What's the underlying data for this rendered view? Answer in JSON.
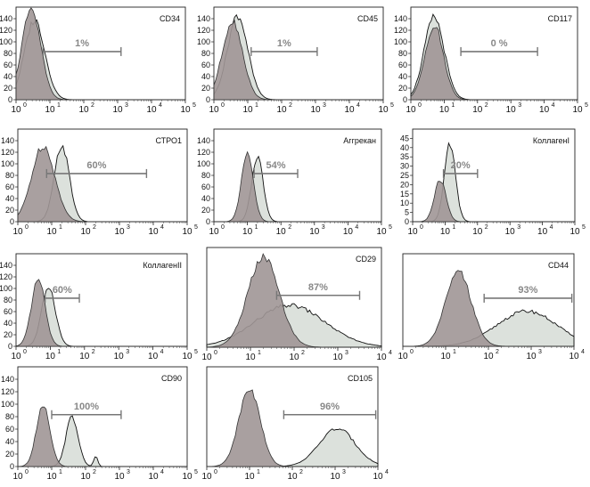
{
  "chart_data": [
    {
      "type": "area",
      "title": "CD34",
      "percent_label": "1%",
      "ylim": [
        0,
        160
      ],
      "yticks": [
        "0",
        "20",
        "40",
        "60",
        "80",
        "100",
        "120",
        "140"
      ],
      "xlim": [
        0,
        5
      ],
      "xticks": [
        "10",
        "10",
        "10",
        "10",
        "10",
        "10"
      ],
      "xtick_exponents": [
        "0",
        "1",
        "2",
        "3",
        "4",
        "5"
      ],
      "control_peak_log": 0.45,
      "sample_peak_log": 0.55,
      "gate_log": [
        0.8,
        3.1
      ],
      "control_color": "#a09696",
      "sample_color": "#d6dcd6"
    },
    {
      "type": "area",
      "title": "CD45",
      "percent_label": "1%",
      "ylim": [
        0,
        160
      ],
      "yticks": [
        "0",
        "20",
        "40",
        "60",
        "80",
        "100",
        "120",
        "140"
      ],
      "xlim": [
        0,
        5
      ],
      "xticks": [
        "10",
        "10",
        "10",
        "10",
        "10",
        "10"
      ],
      "xtick_exponents": [
        "0",
        "1",
        "2",
        "3",
        "4",
        "5"
      ],
      "control_peak_log": 0.55,
      "sample_peak_log": 0.7,
      "gate_log": [
        1.1,
        3.05
      ],
      "control_color": "#a09696",
      "sample_color": "#d6dcd6"
    },
    {
      "type": "area",
      "title": "CD117",
      "percent_label": "0 %",
      "ylim": [
        0,
        160
      ],
      "yticks": [
        "0",
        "20",
        "40",
        "60",
        "80",
        "100",
        "120",
        "140"
      ],
      "xlim": [
        0,
        5
      ],
      "xticks": [
        "10",
        "10",
        "10",
        "10",
        "10",
        "10"
      ],
      "xtick_exponents": [
        "0",
        "1",
        "2",
        "3",
        "4",
        "5"
      ],
      "control_peak_log": 0.7,
      "sample_peak_log": 0.7,
      "gate_log": [
        1.5,
        3.8
      ],
      "control_color": "#a09696",
      "sample_color": "#d6dcd6"
    },
    {
      "type": "area",
      "title": "СТРО1",
      "percent_label": "60%",
      "ylim": [
        0,
        160
      ],
      "yticks": [
        "0",
        "20",
        "40",
        "60",
        "80",
        "100",
        "120",
        "140"
      ],
      "xlim": [
        0,
        5
      ],
      "xticks": [
        "10",
        "10",
        "10",
        "10",
        "10",
        "10"
      ],
      "xtick_exponents": [
        "0",
        "1",
        "2",
        "3",
        "4",
        "5"
      ],
      "control_peak_log": 0.75,
      "sample_peak_log": 1.3,
      "gate_log": [
        0.85,
        3.8
      ],
      "control_color": "#a09696",
      "sample_color": "#d6dcd6"
    },
    {
      "type": "area",
      "title": "Аггрекан",
      "percent_label": "54%",
      "ylim": [
        0,
        160
      ],
      "yticks": [
        "0",
        "20",
        "40",
        "60",
        "80",
        "100",
        "120",
        "140"
      ],
      "xlim": [
        0,
        5
      ],
      "xticks": [
        "10",
        "10",
        "10",
        "10",
        "10",
        "10"
      ],
      "xtick_exponents": [
        "0",
        "1",
        "2",
        "3",
        "4",
        "5"
      ],
      "control_peak_log": 1.0,
      "sample_peak_log": 1.3,
      "gate_log": [
        1.2,
        2.5
      ],
      "control_color": "#a09696",
      "sample_color": "#d6dcd6"
    },
    {
      "type": "area",
      "title": "КоллагенI",
      "percent_label": "20%",
      "ylim": [
        0,
        50
      ],
      "yticks": [
        "0",
        "5",
        "10",
        "15",
        "20",
        "25",
        "30",
        "35",
        "40",
        "45"
      ],
      "xlim": [
        0,
        5
      ],
      "xticks": [
        "10",
        "10",
        "10",
        "10",
        "10",
        "10"
      ],
      "xtick_exponents": [
        "0",
        "1",
        "2",
        "3",
        "4",
        "5"
      ],
      "control_peak_log": 0.85,
      "sample_peak_log": 1.15,
      "gate_log": [
        0.95,
        2.0
      ],
      "control_color": "#a09696",
      "sample_color": "#d6dcd6"
    },
    {
      "type": "area",
      "title": "КоллагенII",
      "percent_label": "60%",
      "ylim": [
        0,
        160
      ],
      "yticks": [
        "0",
        "20",
        "40",
        "60",
        "80",
        "100",
        "120",
        "140"
      ],
      "xlim": [
        0,
        5
      ],
      "xticks": [
        "10",
        "10",
        "10",
        "10",
        "10",
        "10"
      ],
      "xtick_exponents": [
        "0",
        "1",
        "2",
        "3",
        "4",
        "5"
      ],
      "control_peak_log": 0.65,
      "sample_peak_log": 0.95,
      "gate_log": [
        0.85,
        1.85
      ],
      "control_color": "#a09696",
      "sample_color": "#d6dcd6"
    },
    {
      "type": "area",
      "title": "CD29",
      "percent_label": "87%",
      "ylim": [
        0,
        160
      ],
      "yticks": [],
      "xlim": [
        0,
        4
      ],
      "xticks": [
        "10",
        "10",
        "10",
        "10",
        "10"
      ],
      "xtick_exponents": [
        "0",
        "1",
        "2",
        "3",
        "4"
      ],
      "control_peak_log": 1.3,
      "sample_peak_log": 1.9,
      "gate_log": [
        1.6,
        3.5
      ],
      "control_color": "#a09696",
      "sample_color": "#d6dcd6"
    },
    {
      "type": "area",
      "title": "CD44",
      "percent_label": "93%",
      "ylim": [
        0,
        160
      ],
      "yticks": [],
      "xlim": [
        0,
        4
      ],
      "xticks": [
        "10",
        "10",
        "10",
        "10",
        "10"
      ],
      "xtick_exponents": [
        "0",
        "1",
        "2",
        "3",
        "4"
      ],
      "control_peak_log": 1.3,
      "sample_peak_log": 2.9,
      "gate_log": [
        1.9,
        3.95
      ],
      "control_color": "#a09696",
      "sample_color": "#d6dcd6"
    },
    {
      "type": "area",
      "title": "CD90",
      "percent_label": "100%",
      "ylim": [
        0,
        160
      ],
      "yticks": [
        "0",
        "20",
        "40",
        "60",
        "80",
        "100",
        "120",
        "140"
      ],
      "xlim": [
        0,
        5
      ],
      "xticks": [
        "10",
        "10",
        "10",
        "10",
        "10",
        "10"
      ],
      "xtick_exponents": [
        "0",
        "1",
        "2",
        "3",
        "4",
        "5"
      ],
      "control_peak_log": 0.75,
      "sample_peak_log": 1.6,
      "gate_log": [
        1.0,
        3.05
      ],
      "control_color": "#a09696",
      "sample_color": "#d6dcd6"
    },
    {
      "type": "area",
      "title": "CD105",
      "percent_label": "96%",
      "ylim": [
        0,
        160
      ],
      "yticks": [],
      "xlim": [
        0,
        4
      ],
      "xticks": [
        "10",
        "10",
        "10",
        "10",
        "10"
      ],
      "xtick_exponents": [
        "0",
        "1",
        "2",
        "3",
        "4"
      ],
      "control_peak_log": 1.0,
      "sample_peak_log": 3.05,
      "gate_log": [
        1.8,
        3.95
      ],
      "control_color": "#a09696",
      "sample_color": "#d6dcd6"
    }
  ]
}
